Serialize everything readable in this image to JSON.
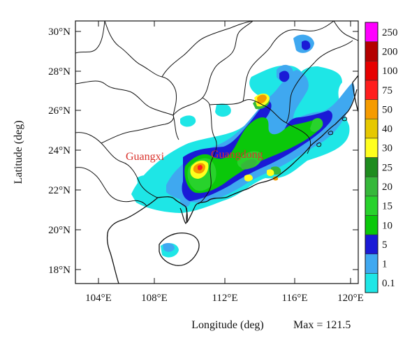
{
  "map": {
    "x_ticks": [
      "104°E",
      "108°E",
      "112°E",
      "116°E",
      "120°E"
    ],
    "y_ticks": [
      "30°N",
      "28°N",
      "26°N",
      "24°N",
      "22°N",
      "20°N",
      "18°N"
    ],
    "x_axis_title": "Longitude (deg)",
    "y_axis_title": "Latitude (deg)",
    "max_label": "Max = 121.5",
    "place_labels": [
      {
        "name": "Guangxi"
      },
      {
        "name": "Guangdong"
      }
    ]
  },
  "colorbar": {
    "levels": [
      "0.1",
      "1",
      "5",
      "10",
      "15",
      "20",
      "25",
      "30",
      "40",
      "50",
      "75",
      "100",
      "200",
      "250"
    ],
    "colors": [
      "#1ee6e6",
      "#3fa8f0",
      "#1a1ad6",
      "#0ac80a",
      "#28d22c",
      "#36b83a",
      "#1e8c1e",
      "#ffff1e",
      "#e6c800",
      "#f59b00",
      "#ff1e1e",
      "#e60000",
      "#b40000",
      "#ff00ff"
    ]
  },
  "colors": {
    "border": "#111111",
    "label_red": "#d9312b",
    "background": "#ffffff"
  }
}
